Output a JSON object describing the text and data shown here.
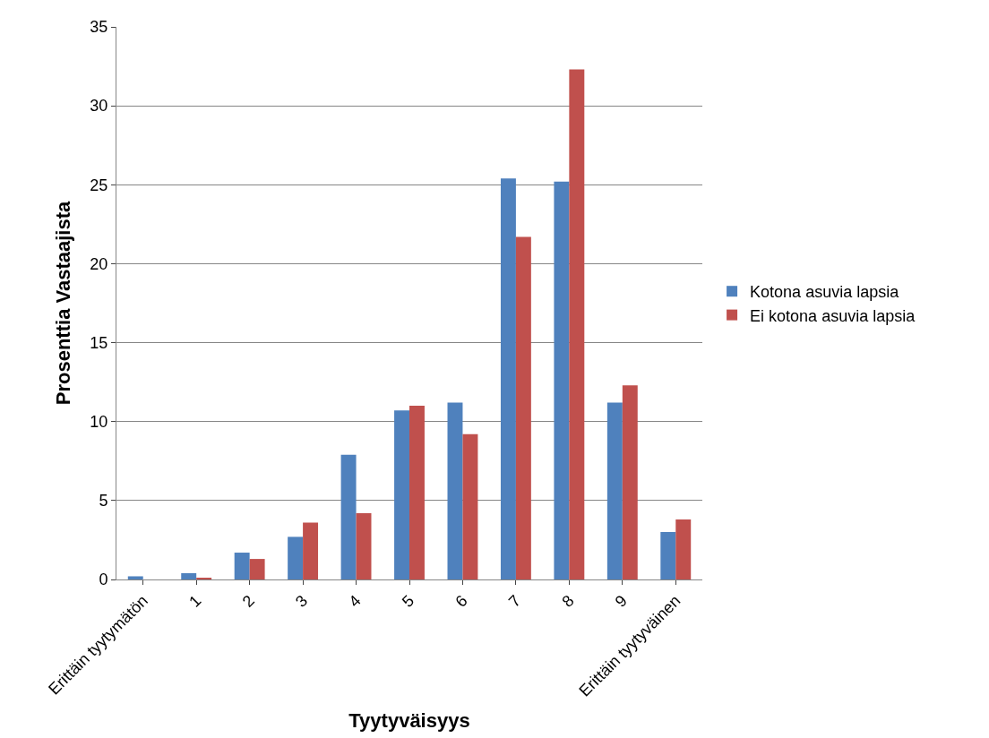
{
  "chart_data": {
    "type": "bar",
    "xlabel": "Tyytyväisyys",
    "ylabel": "Prosenttia Vastaajista",
    "categories": [
      "Erittäin tyytymätön",
      "1",
      "2",
      "3",
      "4",
      "5",
      "6",
      "7",
      "8",
      "9",
      "Erittäin tyytyväinen"
    ],
    "series": [
      {
        "name": "Kotona asuvia lapsia",
        "color": "#4f81bd",
        "values": [
          0.2,
          0.4,
          1.7,
          2.7,
          7.9,
          10.7,
          11.2,
          25.4,
          25.2,
          11.2,
          3.0
        ]
      },
      {
        "name": "Ei kotona asuvia lapsia",
        "color": "#c0504d",
        "values": [
          0,
          0.1,
          1.3,
          3.6,
          4.2,
          11.0,
          9.2,
          21.7,
          32.3,
          12.3,
          3.8
        ]
      }
    ],
    "ylim": [
      0,
      35
    ],
    "yticks": [
      0,
      5,
      10,
      15,
      20,
      25,
      30,
      35
    ],
    "grid": "y",
    "legend": "right"
  }
}
